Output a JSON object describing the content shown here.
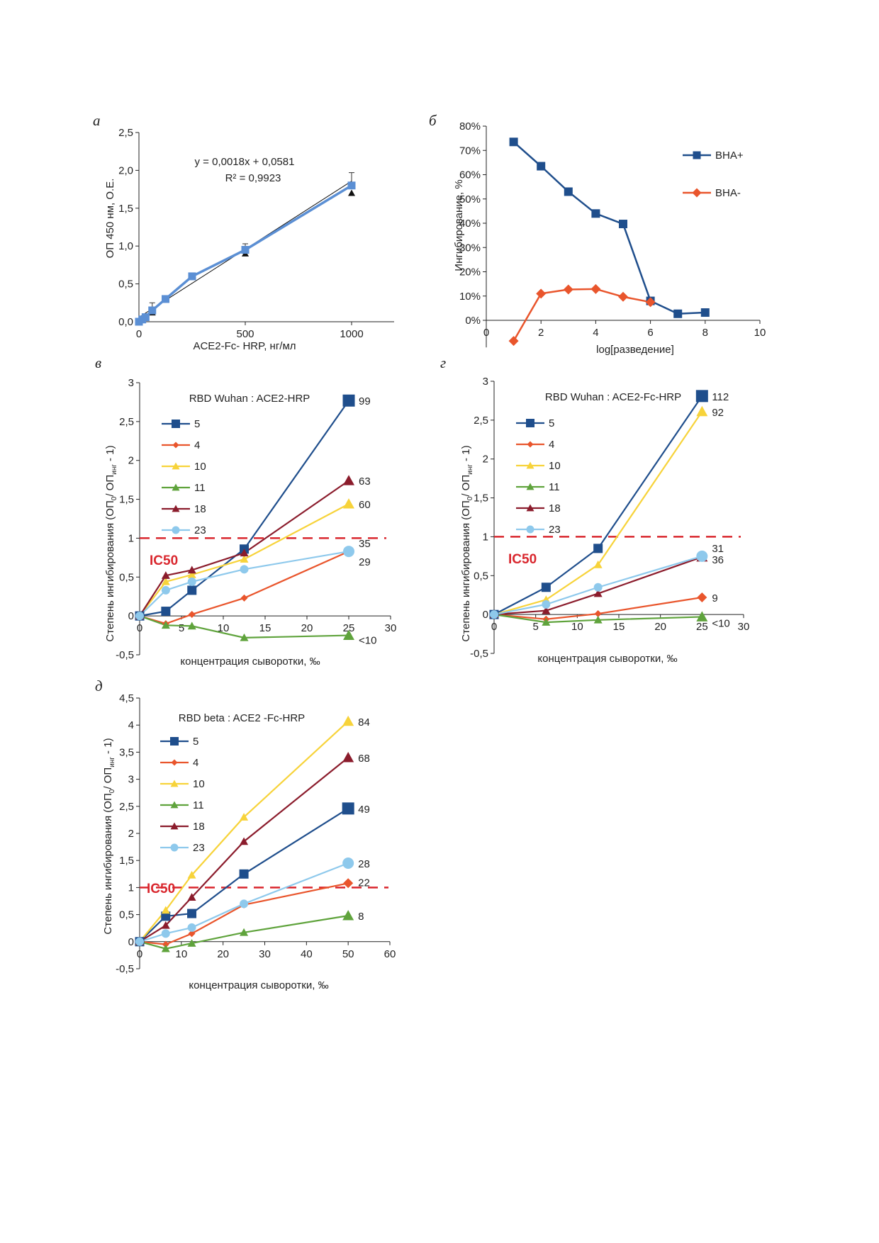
{
  "colors": {
    "s5": "#1f4e8c",
    "s4": "#e9552c",
    "s10": "#f7d33a",
    "s11": "#5fa33c",
    "s18": "#8b1c2c",
    "s23": "#8ec9ec",
    "bha_plus": "#1f4e8c",
    "bha_minus": "#e9552c",
    "std": "#5b8fd4",
    "ic50": "#d9272e"
  },
  "chart_data": [
    {
      "panel": "а",
      "type": "scatter",
      "ylabel": "ОП 450 нм, О.Е.",
      "xlabel": "ACE2-Fc- HRP, нг/мл",
      "xlim": [
        0,
        1200
      ],
      "ylim": [
        0,
        2.5
      ],
      "xticks": [
        "0",
        "500",
        "1000"
      ],
      "yticks": [
        "0,0",
        "0,5",
        "1,0",
        "1,5",
        "2,0",
        "2,5"
      ],
      "equation": "y = 0,0018x + 0,0581",
      "r2": "R² = 0,9923",
      "series": [
        {
          "x": [
            0,
            15.6,
            31.25,
            62.5,
            125,
            250,
            500,
            1000
          ],
          "y": [
            0.0,
            0.03,
            0.06,
            0.15,
            0.3,
            0.6,
            0.95,
            1.8
          ],
          "err": [
            0.01,
            0.02,
            0.03,
            0.1,
            0.03,
            0.03,
            0.08,
            0.17
          ]
        },
        {
          "x": [
            31.25,
            62.5,
            500,
            1000
          ],
          "y": [
            0.05,
            0.12,
            0.9,
            1.7
          ]
        }
      ],
      "fit": {
        "slope": 0.0018,
        "intercept": 0.0581
      }
    },
    {
      "panel": "б",
      "type": "line",
      "ylabel": "Ингибирование, %",
      "xlabel": "log[разведение]",
      "xlim": [
        0,
        10
      ],
      "ylim": [
        -10,
        80
      ],
      "xticks": [
        "0",
        "2",
        "4",
        "6",
        "8",
        "10"
      ],
      "yticks": [
        "0%",
        "10%",
        "20%",
        "30%",
        "40%",
        "50%",
        "60%",
        "70%",
        "80%"
      ],
      "legend_position": "right",
      "series": [
        {
          "name": "ВНА+",
          "x": [
            1,
            2,
            3,
            4,
            5,
            6,
            7,
            8
          ],
          "y": [
            73.5,
            63.5,
            53,
            44,
            39.7,
            8,
            2.7,
            3.2
          ]
        },
        {
          "name": "ВНА-",
          "x": [
            1,
            2,
            3,
            4,
            5,
            6
          ],
          "y": [
            -8.5,
            11,
            12.7,
            12.9,
            9.7,
            7.5
          ]
        }
      ]
    },
    {
      "panel": "в",
      "type": "line",
      "title": "RBD Wuhan : ACE2-HRP",
      "xlabel": "концентрация сыворотки, ‰",
      "xlim": [
        0,
        30
      ],
      "ylim": [
        -0.5,
        3
      ],
      "xticks": [
        "0",
        "5",
        "10",
        "15",
        "20",
        "25",
        "30"
      ],
      "yticks": [
        "-0,5",
        "0",
        "0,5",
        "1",
        "1,5",
        "2",
        "2,5",
        "3"
      ],
      "ic50_label": "IC50",
      "ic50_y": 1,
      "legend_position": "top-left",
      "x": [
        0,
        3.125,
        6.25,
        12.5,
        25
      ],
      "series": [
        {
          "name": "5",
          "values": [
            0,
            0.06,
            0.33,
            0.86,
            2.77
          ],
          "end_label": "99"
        },
        {
          "name": "4",
          "values": [
            0,
            -0.1,
            0.02,
            0.23,
            0.83
          ],
          "end_label": "29"
        },
        {
          "name": "10",
          "values": [
            0,
            0.44,
            0.53,
            0.73,
            1.44
          ],
          "end_label": "60"
        },
        {
          "name": "11",
          "values": [
            0,
            -0.12,
            -0.13,
            -0.28,
            -0.25
          ],
          "end_label": "<10"
        },
        {
          "name": "18",
          "values": [
            0,
            0.52,
            0.59,
            0.81,
            1.74
          ],
          "end_label": "63"
        },
        {
          "name": "23",
          "values": [
            0,
            0.33,
            0.44,
            0.6,
            0.83
          ],
          "end_label": "35"
        }
      ]
    },
    {
      "panel": "г",
      "type": "line",
      "title": "RBD Wuhan : ACE2-Fc-HRP",
      "xlabel": "концентрация сыворотки, ‰",
      "xlim": [
        0,
        30
      ],
      "ylim": [
        -0.5,
        3
      ],
      "xticks": [
        "0",
        "5",
        "10",
        "15",
        "20",
        "25",
        "30"
      ],
      "yticks": [
        "-0,5",
        "0",
        "0,5",
        "1",
        "1,5",
        "2",
        "2,5",
        "3"
      ],
      "ic50_label": "IC50",
      "ic50_y": 1,
      "legend_position": "top-left",
      "x": [
        0,
        6.25,
        12.5,
        25
      ],
      "series": [
        {
          "name": "5",
          "values": [
            0,
            0.35,
            0.85,
            2.81
          ],
          "end_label": "112"
        },
        {
          "name": "4",
          "values": [
            0,
            -0.06,
            0.01,
            0.22
          ],
          "end_label": "9"
        },
        {
          "name": "10",
          "values": [
            0,
            0.19,
            0.64,
            2.61
          ],
          "end_label": "92"
        },
        {
          "name": "11",
          "values": [
            0,
            -0.1,
            -0.07,
            -0.03
          ],
          "end_label": "<10"
        },
        {
          "name": "18",
          "values": [
            0,
            0.05,
            0.27,
            0.74
          ],
          "end_label": "36"
        },
        {
          "name": "23",
          "values": [
            0,
            0.13,
            0.35,
            0.75
          ],
          "end_label": "31"
        }
      ]
    },
    {
      "panel": "д",
      "type": "line",
      "title": "RBD beta : ACE2 -Fc-HRP",
      "xlabel": "концентрация сыворотки, ‰",
      "xlim": [
        0,
        60
      ],
      "ylim": [
        -0.5,
        4.5
      ],
      "xticks": [
        "0",
        "10",
        "20",
        "30",
        "40",
        "50",
        "60"
      ],
      "yticks": [
        "-0,5",
        "0",
        "0,5",
        "1",
        "1,5",
        "2",
        "2,5",
        "3",
        "3,5",
        "4",
        "4,5"
      ],
      "ic50_label": "IC50",
      "ic50_y": 1,
      "legend_position": "top-left",
      "x": [
        0,
        6.25,
        12.5,
        25,
        50
      ],
      "series": [
        {
          "name": "5",
          "values": [
            0,
            0.47,
            0.52,
            1.25,
            2.46
          ],
          "end_label": "49"
        },
        {
          "name": "4",
          "values": [
            0,
            -0.05,
            0.15,
            0.68,
            1.08
          ],
          "end_label": "22"
        },
        {
          "name": "10",
          "values": [
            0,
            0.58,
            1.23,
            2.3,
            4.07
          ],
          "end_label": "84"
        },
        {
          "name": "11",
          "values": [
            0,
            -0.13,
            -0.03,
            0.17,
            0.48
          ],
          "end_label": "8"
        },
        {
          "name": "18",
          "values": [
            0,
            0.3,
            0.82,
            1.85,
            3.4
          ],
          "end_label": "68"
        },
        {
          "name": "23",
          "values": [
            0,
            0.15,
            0.26,
            0.7,
            1.45
          ],
          "end_label": "28"
        }
      ]
    }
  ],
  "ylabel_inhibition": {
    "main": "Степень ингибирования (ОП",
    "sub0": "0",
    "mid": "/ ОП",
    "sub_inh": "инг",
    "tail": " - 1)"
  }
}
